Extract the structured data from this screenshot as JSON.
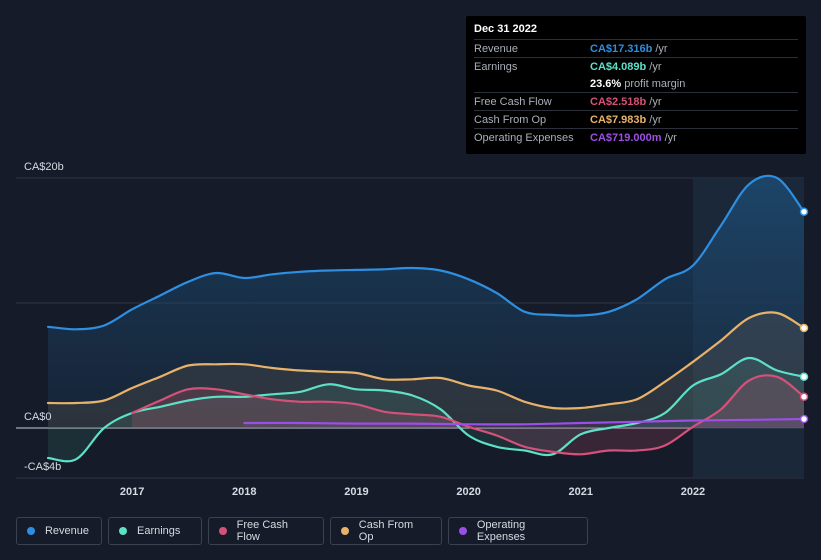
{
  "chart_data": {
    "type": "area",
    "title": "",
    "xlabel": "",
    "ylabel": "",
    "y_unit": "CA$b",
    "ylim": [
      -4,
      20
    ],
    "y_tick_labels": [
      "CA$20b",
      "CA$0",
      "-CA$4b"
    ],
    "x_range": [
      2016.25,
      2022.99
    ],
    "x_tick_labels": [
      "2017",
      "2018",
      "2019",
      "2020",
      "2021",
      "2022"
    ],
    "highlight_from": 2022.0,
    "series": [
      {
        "name": "Revenue",
        "color": "#2e8fe0",
        "x": [
          2016.25,
          2016.5,
          2016.75,
          2017.0,
          2017.25,
          2017.5,
          2017.75,
          2018.0,
          2018.25,
          2018.5,
          2018.75,
          2019.0,
          2019.25,
          2019.5,
          2019.75,
          2020.0,
          2020.25,
          2020.5,
          2020.75,
          2021.0,
          2021.25,
          2021.5,
          2021.75,
          2022.0,
          2022.25,
          2022.5,
          2022.75,
          2022.99
        ],
        "values": [
          8.1,
          7.9,
          8.2,
          9.5,
          10.6,
          11.7,
          12.4,
          12.0,
          12.3,
          12.5,
          12.6,
          12.65,
          12.7,
          12.8,
          12.6,
          11.9,
          10.8,
          9.3,
          9.05,
          9.0,
          9.3,
          10.3,
          11.9,
          13.0,
          16.2,
          19.5,
          20.0,
          17.3
        ]
      },
      {
        "name": "Earnings",
        "color": "#5ee0c7",
        "x": [
          2016.25,
          2016.5,
          2016.75,
          2017.0,
          2017.25,
          2017.5,
          2017.75,
          2018.0,
          2018.25,
          2018.5,
          2018.75,
          2019.0,
          2019.25,
          2019.5,
          2019.75,
          2020.0,
          2020.25,
          2020.5,
          2020.75,
          2021.0,
          2021.25,
          2021.5,
          2021.75,
          2022.0,
          2022.25,
          2022.5,
          2022.75,
          2022.99
        ],
        "values": [
          -2.4,
          -2.5,
          0.0,
          1.2,
          1.7,
          2.2,
          2.5,
          2.5,
          2.7,
          2.9,
          3.5,
          3.1,
          3.0,
          2.6,
          1.5,
          -0.6,
          -1.5,
          -1.8,
          -2.1,
          -0.5,
          0.0,
          0.4,
          1.2,
          3.4,
          4.3,
          5.6,
          4.6,
          4.1
        ]
      },
      {
        "name": "Free Cash Flow",
        "color": "#d6517a",
        "x": [
          2017.0,
          2017.25,
          2017.5,
          2017.75,
          2018.0,
          2018.25,
          2018.5,
          2018.75,
          2019.0,
          2019.25,
          2019.5,
          2019.75,
          2020.0,
          2020.25,
          2020.5,
          2020.75,
          2021.0,
          2021.25,
          2021.5,
          2021.75,
          2022.0,
          2022.25,
          2022.5,
          2022.75,
          2022.99
        ],
        "values": [
          1.2,
          2.2,
          3.1,
          3.1,
          2.7,
          2.3,
          2.1,
          2.1,
          1.9,
          1.3,
          1.1,
          0.9,
          0.1,
          -0.6,
          -1.5,
          -1.9,
          -2.1,
          -1.8,
          -1.8,
          -1.4,
          0.1,
          1.5,
          3.8,
          4.1,
          2.5
        ]
      },
      {
        "name": "Cash From Op",
        "color": "#e9b26a",
        "x": [
          2016.25,
          2016.5,
          2016.75,
          2017.0,
          2017.25,
          2017.5,
          2017.75,
          2018.0,
          2018.25,
          2018.5,
          2018.75,
          2019.0,
          2019.25,
          2019.5,
          2019.75,
          2020.0,
          2020.25,
          2020.5,
          2020.75,
          2021.0,
          2021.25,
          2021.5,
          2021.75,
          2022.0,
          2022.25,
          2022.5,
          2022.75,
          2022.99
        ],
        "values": [
          2.0,
          2.0,
          2.2,
          3.2,
          4.1,
          5.0,
          5.1,
          5.1,
          4.8,
          4.6,
          4.5,
          4.4,
          3.9,
          3.9,
          4.0,
          3.4,
          3.0,
          2.1,
          1.6,
          1.6,
          1.9,
          2.3,
          3.7,
          5.3,
          7.0,
          8.8,
          9.2,
          8.0
        ]
      },
      {
        "name": "Operating Expenses",
        "color": "#9b4fe6",
        "x": [
          2018.0,
          2018.5,
          2019.0,
          2019.5,
          2020.0,
          2020.5,
          2021.0,
          2021.5,
          2022.0,
          2022.5,
          2022.99
        ],
        "values": [
          0.4,
          0.4,
          0.35,
          0.35,
          0.3,
          0.3,
          0.4,
          0.5,
          0.6,
          0.65,
          0.72
        ]
      }
    ]
  },
  "tooltip": {
    "date": "Dec 31 2022",
    "rows": [
      {
        "label": "Revenue",
        "value": "CA$17.316b",
        "unit": "/yr",
        "color": "#2e8fe0"
      },
      {
        "label": "Earnings",
        "value": "CA$4.089b",
        "unit": "/yr",
        "color": "#5ee0c7"
      },
      {
        "label": "",
        "value": "23.6%",
        "unit": "profit margin",
        "color": "#ffffff"
      },
      {
        "label": "Free Cash Flow",
        "value": "CA$2.518b",
        "unit": "/yr",
        "color": "#d6517a"
      },
      {
        "label": "Cash From Op",
        "value": "CA$7.983b",
        "unit": "/yr",
        "color": "#e9b26a"
      },
      {
        "label": "Operating Expenses",
        "value": "CA$719.000m",
        "unit": "/yr",
        "color": "#9b4fe6"
      }
    ]
  },
  "legend": [
    {
      "label": "Revenue",
      "color": "#2e8fe0"
    },
    {
      "label": "Earnings",
      "color": "#5ee0c7"
    },
    {
      "label": "Free Cash Flow",
      "color": "#d6517a"
    },
    {
      "label": "Cash From Op",
      "color": "#e9b26a"
    },
    {
      "label": "Operating Expenses",
      "color": "#9b4fe6"
    }
  ]
}
